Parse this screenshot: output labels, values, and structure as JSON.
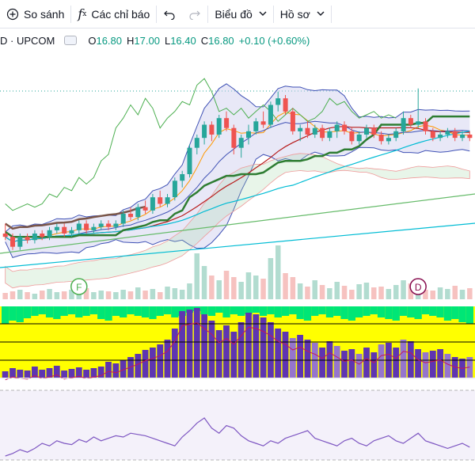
{
  "toolbar": {
    "compare_label": "So sánh",
    "indicators_label": "Các chỉ báo",
    "chart_type_label": "Biểu đồ",
    "profile_label": "Hồ sơ"
  },
  "legend": {
    "symbol": "D · UPCOM",
    "open_key": "O",
    "open": "16.80",
    "high_key": "H",
    "high": "17.00",
    "low_key": "L",
    "low": "16.40",
    "close_key": "C",
    "close": "16.80",
    "change": "+0.10 (+0.60%)"
  },
  "markers": {
    "f_label": "F",
    "d_label": "D"
  },
  "colors": {
    "up": "#26a69a",
    "down": "#ef5350",
    "band_fill": "#ccccee",
    "ichimoku": "#43a047",
    "lime": "#00e676",
    "yellow": "#ffff00",
    "purple": "#5e35b1"
  },
  "chart_data": {
    "type": "candlestick",
    "price_range": [
      15.0,
      21.0
    ],
    "candles": [
      [
        15.6,
        15.9,
        15.4,
        15.5
      ],
      [
        15.5,
        15.6,
        15.1,
        15.2
      ],
      [
        15.2,
        15.6,
        15.1,
        15.5
      ],
      [
        15.5,
        15.6,
        15.3,
        15.4
      ],
      [
        15.4,
        15.7,
        15.3,
        15.6
      ],
      [
        15.6,
        15.7,
        15.4,
        15.5
      ],
      [
        15.5,
        15.8,
        15.4,
        15.7
      ],
      [
        15.7,
        15.9,
        15.6,
        15.8
      ],
      [
        15.8,
        15.9,
        15.5,
        15.6
      ],
      [
        15.6,
        15.8,
        15.5,
        15.7
      ],
      [
        15.7,
        16.0,
        15.6,
        15.9
      ],
      [
        15.9,
        16.0,
        15.6,
        15.7
      ],
      [
        15.7,
        15.9,
        15.6,
        15.8
      ],
      [
        15.8,
        16.0,
        15.7,
        15.9
      ],
      [
        15.9,
        16.0,
        15.7,
        15.8
      ],
      [
        15.8,
        16.0,
        15.7,
        15.9
      ],
      [
        15.9,
        16.3,
        15.8,
        16.2
      ],
      [
        16.2,
        16.4,
        16.0,
        16.1
      ],
      [
        16.1,
        16.5,
        16.0,
        16.4
      ],
      [
        16.4,
        16.6,
        16.2,
        16.3
      ],
      [
        16.3,
        16.8,
        16.2,
        16.7
      ],
      [
        16.7,
        16.9,
        16.4,
        16.5
      ],
      [
        16.5,
        16.8,
        16.4,
        16.7
      ],
      [
        16.7,
        17.3,
        16.6,
        17.2
      ],
      [
        17.2,
        17.5,
        17.0,
        17.4
      ],
      [
        17.4,
        18.3,
        17.3,
        18.2
      ],
      [
        18.2,
        18.6,
        18.0,
        18.5
      ],
      [
        18.5,
        19.0,
        18.3,
        18.9
      ],
      [
        18.9,
        19.0,
        18.4,
        18.6
      ],
      [
        18.6,
        19.2,
        18.5,
        19.1
      ],
      [
        19.1,
        19.3,
        18.7,
        18.8
      ],
      [
        18.8,
        18.9,
        18.0,
        18.2
      ],
      [
        18.2,
        18.6,
        17.9,
        18.5
      ],
      [
        18.5,
        18.9,
        18.3,
        18.7
      ],
      [
        18.7,
        19.1,
        18.6,
        19.0
      ],
      [
        19.0,
        19.3,
        18.8,
        18.9
      ],
      [
        18.9,
        19.6,
        18.8,
        19.5
      ],
      [
        19.5,
        19.9,
        19.3,
        19.7
      ],
      [
        19.7,
        19.8,
        19.2,
        19.3
      ],
      [
        19.3,
        19.4,
        18.6,
        18.7
      ],
      [
        18.7,
        18.9,
        18.4,
        18.8
      ],
      [
        18.8,
        19.0,
        18.5,
        18.6
      ],
      [
        18.6,
        18.9,
        18.5,
        18.8
      ],
      [
        18.8,
        18.9,
        18.4,
        18.5
      ],
      [
        18.5,
        18.8,
        18.4,
        18.7
      ],
      [
        18.7,
        19.0,
        18.5,
        18.9
      ],
      [
        18.9,
        19.0,
        18.6,
        18.7
      ],
      [
        18.7,
        18.8,
        18.3,
        18.4
      ],
      [
        18.4,
        18.7,
        18.3,
        18.6
      ],
      [
        18.6,
        18.9,
        18.5,
        18.8
      ],
      [
        18.8,
        18.9,
        18.5,
        18.6
      ],
      [
        18.6,
        18.7,
        18.3,
        18.4
      ],
      [
        18.4,
        18.6,
        18.3,
        18.5
      ],
      [
        18.5,
        18.8,
        18.4,
        18.7
      ],
      [
        18.7,
        19.3,
        18.6,
        19.1
      ],
      [
        19.1,
        19.2,
        18.8,
        18.9
      ],
      [
        18.9,
        20.0,
        18.8,
        19.0
      ],
      [
        19.0,
        19.1,
        18.6,
        18.7
      ],
      [
        18.7,
        18.8,
        18.4,
        18.5
      ],
      [
        18.5,
        18.7,
        18.4,
        18.6
      ],
      [
        18.6,
        18.8,
        18.5,
        18.7
      ],
      [
        18.7,
        18.8,
        18.4,
        18.5
      ],
      [
        18.5,
        18.7,
        18.4,
        18.6
      ],
      [
        18.6,
        18.7,
        18.4,
        18.5
      ]
    ]
  }
}
